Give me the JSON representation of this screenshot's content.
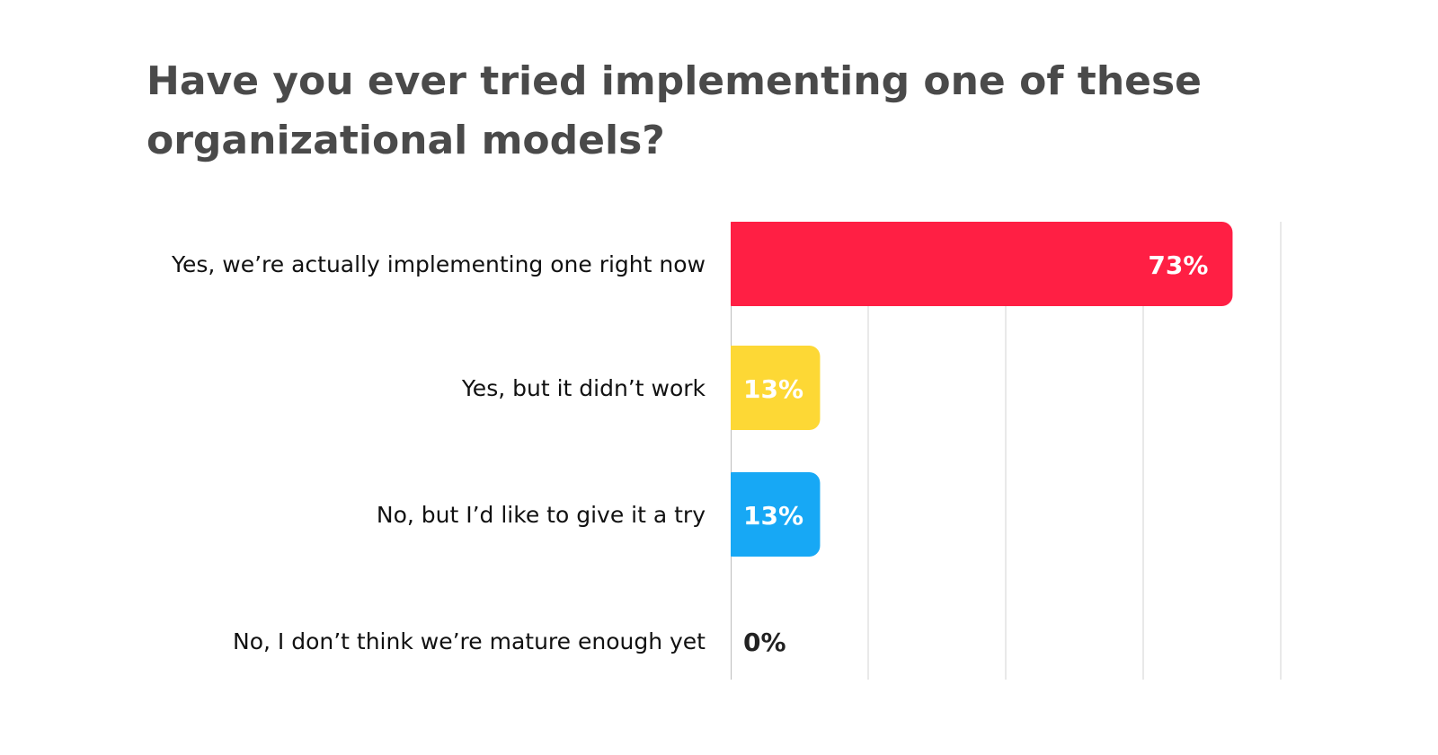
{
  "chart_data": {
    "type": "bar",
    "orientation": "horizontal",
    "title": "Have you ever tried implementing one of these organizational models?",
    "categories": [
      "Yes, we’re actually implementing one right now",
      "Yes, but it didn’t work",
      "No, but I’d like to give it a try",
      "No, I don’t think we’re mature enough yet"
    ],
    "values": [
      73,
      13,
      13,
      0
    ],
    "value_labels": [
      "73%",
      "13%",
      "13%",
      "0%"
    ],
    "bar_colors": [
      "#ff1f44",
      "#fdd835",
      "#17a8f5",
      "#cccccc"
    ],
    "value_label_colors": [
      "#ffffff",
      "#ffffff",
      "#ffffff",
      "#222222"
    ],
    "xlim": [
      0,
      80
    ],
    "gridlines": [
      0,
      20,
      40,
      60,
      80
    ],
    "xlabel": "",
    "ylabel": "",
    "grid": true,
    "legend": "none"
  }
}
